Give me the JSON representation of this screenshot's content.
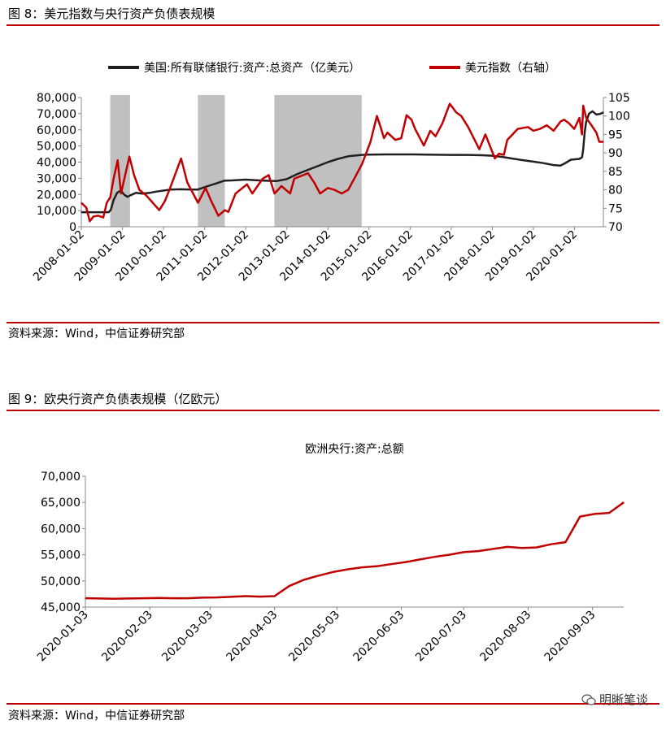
{
  "figure1": {
    "title": "图 8：美元指数与央行资产负债表规模",
    "source": "资料来源：Wind，中信证券研究部",
    "chart_data": {
      "type": "line",
      "title": "",
      "x_axis_type": "date",
      "x_ticks": [
        "2008-01-02",
        "2009-01-02",
        "2010-01-02",
        "2011-01-02",
        "2012-01-02",
        "2013-01-02",
        "2014-01-02",
        "2015-01-02",
        "2016-01-02",
        "2017-01-02",
        "2018-01-02",
        "2019-01-02",
        "2020-01-02"
      ],
      "xlim": [
        "2008-01-02",
        "2020-09-15"
      ],
      "y_left": {
        "lim": [
          0,
          80000
        ],
        "ticks": [
          0,
          10000,
          20000,
          30000,
          40000,
          50000,
          60000,
          70000,
          80000
        ],
        "tick_labels": [
          "0",
          "10,000",
          "20,000",
          "30,000",
          "40,000",
          "50,000",
          "60,000",
          "70,000",
          "80,000"
        ]
      },
      "y_right": {
        "lim": [
          70,
          105
        ],
        "ticks": [
          70,
          75,
          80,
          85,
          90,
          95,
          100,
          105
        ],
        "tick_labels": [
          "70",
          "75",
          "80",
          "85",
          "90",
          "95",
          "100",
          "105"
        ]
      },
      "grid": false,
      "legend_position": "top",
      "shaded_periods": [
        [
          "2008-09-15",
          "2009-03-10"
        ],
        [
          "2010-11-03",
          "2011-06-30"
        ],
        [
          "2012-09-13",
          "2014-10-29"
        ]
      ],
      "series": [
        {
          "name": "美国:所有联储银行:资产:总资产（亿美元）",
          "axis": "left",
          "color": "#231f20",
          "points": [
            [
              "2008-01-02",
              9000
            ],
            [
              "2008-03-01",
              9000
            ],
            [
              "2008-06-01",
              9000
            ],
            [
              "2008-09-01",
              9000
            ],
            [
              "2008-09-20",
              10500
            ],
            [
              "2008-10-15",
              16500
            ],
            [
              "2008-11-15",
              21000
            ],
            [
              "2008-12-20",
              22500
            ],
            [
              "2009-01-15",
              20000
            ],
            [
              "2009-02-15",
              18500
            ],
            [
              "2009-03-15",
              19500
            ],
            [
              "2009-05-01",
              21000
            ],
            [
              "2009-07-01",
              20500
            ],
            [
              "2009-09-01",
              21000
            ],
            [
              "2009-11-01",
              21800
            ],
            [
              "2010-01-01",
              22400
            ],
            [
              "2010-03-01",
              23000
            ],
            [
              "2010-06-01",
              23200
            ],
            [
              "2010-09-01",
              23000
            ],
            [
              "2010-11-01",
              23000
            ],
            [
              "2011-01-01",
              24500
            ],
            [
              "2011-04-01",
              26500
            ],
            [
              "2011-06-30",
              28600
            ],
            [
              "2011-09-01",
              28700
            ],
            [
              "2012-01-01",
              29200
            ],
            [
              "2012-04-01",
              28800
            ],
            [
              "2012-07-01",
              28500
            ],
            [
              "2012-10-01",
              28300
            ],
            [
              "2013-01-01",
              29500
            ],
            [
              "2013-04-01",
              32500
            ],
            [
              "2013-07-01",
              35000
            ],
            [
              "2013-10-01",
              37500
            ],
            [
              "2014-01-01",
              40000
            ],
            [
              "2014-04-01",
              42000
            ],
            [
              "2014-07-01",
              43600
            ],
            [
              "2014-10-29",
              44500
            ],
            [
              "2015-01-01",
              44700
            ],
            [
              "2015-06-01",
              44800
            ],
            [
              "2016-01-01",
              44800
            ],
            [
              "2016-06-01",
              44700
            ],
            [
              "2017-01-01",
              44500
            ],
            [
              "2017-06-01",
              44500
            ],
            [
              "2017-10-01",
              44300
            ],
            [
              "2018-01-01",
              44000
            ],
            [
              "2018-04-01",
              43200
            ],
            [
              "2018-07-01",
              42200
            ],
            [
              "2018-10-01",
              41200
            ],
            [
              "2019-01-01",
              40300
            ],
            [
              "2019-04-01",
              39400
            ],
            [
              "2019-07-01",
              38200
            ],
            [
              "2019-09-01",
              37900
            ],
            [
              "2019-10-15",
              39500
            ],
            [
              "2019-12-01",
              41500
            ],
            [
              "2020-02-15",
              42000
            ],
            [
              "2020-03-10",
              43000
            ],
            [
              "2020-03-20",
              48000
            ],
            [
              "2020-04-01",
              58000
            ],
            [
              "2020-04-15",
              65000
            ],
            [
              "2020-05-10",
              70000
            ],
            [
              "2020-06-10",
              71500
            ],
            [
              "2020-07-15",
              69500
            ],
            [
              "2020-08-15",
              69800
            ],
            [
              "2020-09-15",
              70800
            ]
          ]
        },
        {
          "name": "美元指数（右轴）",
          "axis": "right",
          "color": "#c00000",
          "points": [
            [
              "2008-01-02",
              76.5
            ],
            [
              "2008-02-15",
              75.2
            ],
            [
              "2008-03-17",
              71.5
            ],
            [
              "2008-04-20",
              72.8
            ],
            [
              "2008-06-01",
              73.0
            ],
            [
              "2008-07-15",
              72.5
            ],
            [
              "2008-08-15",
              76.5
            ],
            [
              "2008-09-15",
              78.0
            ],
            [
              "2008-10-15",
              83.0
            ],
            [
              "2008-11-20",
              88.0
            ],
            [
              "2008-12-20",
              79.0
            ],
            [
              "2009-03-04",
              89.0
            ],
            [
              "2009-04-15",
              84.0
            ],
            [
              "2009-06-01",
              80.0
            ],
            [
              "2009-08-01",
              78.5
            ],
            [
              "2009-11-25",
              74.5
            ],
            [
              "2010-01-15",
              77.0
            ],
            [
              "2010-03-01",
              80.5
            ],
            [
              "2010-06-07",
              88.5
            ],
            [
              "2010-08-01",
              82.0
            ],
            [
              "2010-11-04",
              76.5
            ],
            [
              "2011-01-10",
              80.5
            ],
            [
              "2011-03-01",
              77.0
            ],
            [
              "2011-05-04",
              73.0
            ],
            [
              "2011-07-01",
              74.5
            ],
            [
              "2011-08-01",
              74.0
            ],
            [
              "2011-10-04",
              79.0
            ],
            [
              "2012-01-13",
              81.5
            ],
            [
              "2012-03-01",
              79.0
            ],
            [
              "2012-06-01",
              83.0
            ],
            [
              "2012-07-24",
              84.0
            ],
            [
              "2012-09-14",
              79.0
            ],
            [
              "2012-11-15",
              81.0
            ],
            [
              "2013-01-31",
              79.0
            ],
            [
              "2013-03-08",
              83.0
            ],
            [
              "2013-07-09",
              84.5
            ],
            [
              "2013-09-01",
              82.0
            ],
            [
              "2013-10-24",
              79.0
            ],
            [
              "2014-01-01",
              80.5
            ],
            [
              "2014-03-01",
              80.0
            ],
            [
              "2014-05-06",
              79.0
            ],
            [
              "2014-07-01",
              80.0
            ],
            [
              "2014-09-01",
              83.5
            ],
            [
              "2014-11-01",
              87.0
            ],
            [
              "2015-01-15",
              93.0
            ],
            [
              "2015-03-13",
              100.0
            ],
            [
              "2015-04-15",
              97.0
            ],
            [
              "2015-05-15",
              94.0
            ],
            [
              "2015-06-15",
              95.5
            ],
            [
              "2015-08-24",
              93.5
            ],
            [
              "2015-10-15",
              94.0
            ],
            [
              "2015-12-02",
              100.2
            ],
            [
              "2016-01-15",
              99.0
            ],
            [
              "2016-02-15",
              96.5
            ],
            [
              "2016-05-03",
              92.0
            ],
            [
              "2016-06-30",
              96.0
            ],
            [
              "2016-08-15",
              94.5
            ],
            [
              "2016-10-15",
              98.0
            ],
            [
              "2016-12-20",
              103.3
            ],
            [
              "2017-02-15",
              101.0
            ],
            [
              "2017-04-01",
              100.0
            ],
            [
              "2017-06-01",
              97.0
            ],
            [
              "2017-09-08",
              91.0
            ],
            [
              "2017-11-01",
              95.0
            ],
            [
              "2018-01-25",
              88.5
            ],
            [
              "2018-03-01",
              89.8
            ],
            [
              "2018-04-15",
              89.5
            ],
            [
              "2018-05-15",
              93.5
            ],
            [
              "2018-07-01",
              95.0
            ],
            [
              "2018-08-15",
              96.5
            ],
            [
              "2018-11-15",
              97.0
            ],
            [
              "2019-01-01",
              96.0
            ],
            [
              "2019-03-01",
              96.5
            ],
            [
              "2019-05-01",
              97.5
            ],
            [
              "2019-07-01",
              96.0
            ],
            [
              "2019-09-01",
              98.5
            ],
            [
              "2019-10-01",
              99.0
            ],
            [
              "2019-11-15",
              98.0
            ],
            [
              "2019-12-31",
              96.5
            ],
            [
              "2020-02-15",
              99.5
            ],
            [
              "2020-03-09",
              95.0
            ],
            [
              "2020-03-20",
              102.8
            ],
            [
              "2020-04-15",
              99.5
            ],
            [
              "2020-06-01",
              97.5
            ],
            [
              "2020-07-15",
              95.5
            ],
            [
              "2020-08-10",
              93.0
            ],
            [
              "2020-09-15",
              93.0
            ]
          ]
        }
      ]
    }
  },
  "figure2": {
    "title": "图 9：欧央行资产负债表规模（亿欧元）",
    "source": "资料来源：Wind，中信证券研究部",
    "chart_data": {
      "type": "line",
      "title": "欧洲央行:资产:总额",
      "x_axis_type": "date",
      "x_ticks": [
        "2020-01-03",
        "2020-02-03",
        "2020-03-03",
        "2020-04-03",
        "2020-05-03",
        "2020-06-03",
        "2020-07-03",
        "2020-08-03",
        "2020-09-03"
      ],
      "xlim": [
        "2020-01-03",
        "2020-09-18"
      ],
      "y_left": {
        "lim": [
          45000,
          70000
        ],
        "ticks": [
          45000,
          50000,
          55000,
          60000,
          65000,
          70000
        ],
        "tick_labels": [
          "45,000",
          "50,000",
          "55,000",
          "60,000",
          "65,000",
          "70,000"
        ]
      },
      "grid": false,
      "series": [
        {
          "name": "",
          "axis": "left",
          "color": "#c00000",
          "points": [
            [
              "2020-01-03",
              46700
            ],
            [
              "2020-01-10",
              46650
            ],
            [
              "2020-01-17",
              46600
            ],
            [
              "2020-01-24",
              46650
            ],
            [
              "2020-01-31",
              46700
            ],
            [
              "2020-02-07",
              46750
            ],
            [
              "2020-02-14",
              46700
            ],
            [
              "2020-02-21",
              46700
            ],
            [
              "2020-02-28",
              46800
            ],
            [
              "2020-03-06",
              46850
            ],
            [
              "2020-03-13",
              46950
            ],
            [
              "2020-03-20",
              47100
            ],
            [
              "2020-03-27",
              47000
            ],
            [
              "2020-04-03",
              47100
            ],
            [
              "2020-04-10",
              49000
            ],
            [
              "2020-04-17",
              50200
            ],
            [
              "2020-04-24",
              51000
            ],
            [
              "2020-05-01",
              51700
            ],
            [
              "2020-05-08",
              52200
            ],
            [
              "2020-05-15",
              52600
            ],
            [
              "2020-05-22",
              52800
            ],
            [
              "2020-05-29",
              53200
            ],
            [
              "2020-06-05",
              53600
            ],
            [
              "2020-06-12",
              54100
            ],
            [
              "2020-06-19",
              54600
            ],
            [
              "2020-06-26",
              55000
            ],
            [
              "2020-07-03",
              55500
            ],
            [
              "2020-07-10",
              55700
            ],
            [
              "2020-07-17",
              56100
            ],
            [
              "2020-07-24",
              56500
            ],
            [
              "2020-07-31",
              56300
            ],
            [
              "2020-08-07",
              56400
            ],
            [
              "2020-08-14",
              57000
            ],
            [
              "2020-08-21",
              57400
            ],
            [
              "2020-08-28",
              62300
            ],
            [
              "2020-09-04",
              62800
            ],
            [
              "2020-09-11",
              63000
            ],
            [
              "2020-09-18",
              65000
            ]
          ]
        }
      ]
    }
  },
  "watermark": {
    "text": "明晰笔谈",
    "icon": "wechat-icon"
  }
}
